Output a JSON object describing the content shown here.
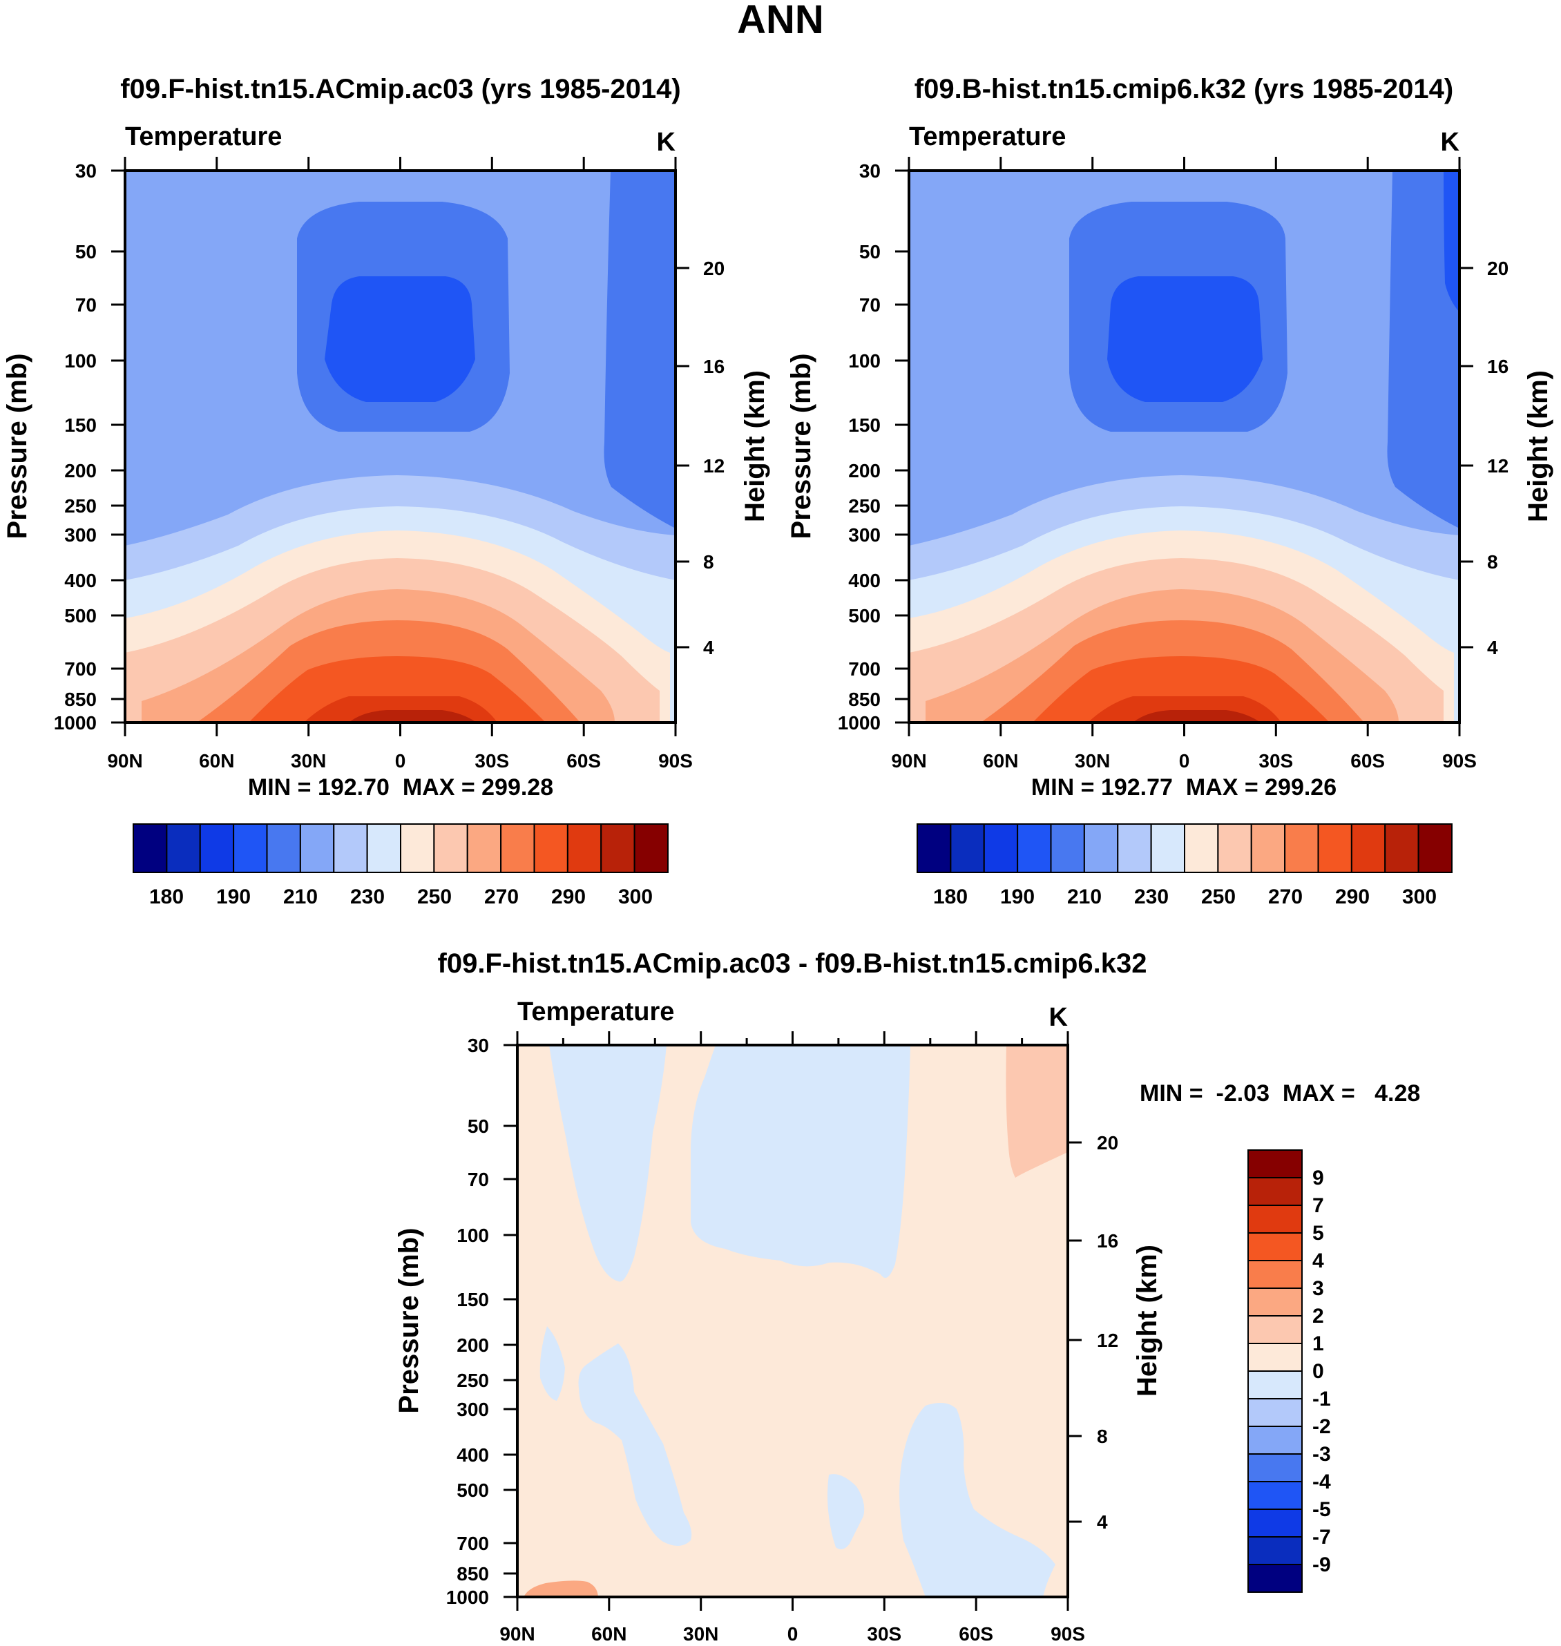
{
  "figure": {
    "title": "ANN"
  },
  "chart_data": [
    {
      "type": "heatmap",
      "id": "p1",
      "title": "f09.F-hist.tn15.ACmip.ac03 (yrs 1985-2014)",
      "variable": "Temperature",
      "units": "K",
      "ylabel": "Pressure (mb)",
      "ylabel2": "Height (km)",
      "x_ticks": [
        "90N",
        "60N",
        "30N",
        "0",
        "30S",
        "60S",
        "90S"
      ],
      "x_values": [
        90,
        60,
        30,
        0,
        -30,
        -60,
        -90
      ],
      "y_ticks": [
        "30",
        "50",
        "70",
        "100",
        "150",
        "200",
        "250",
        "300",
        "400",
        "500",
        "700",
        "850",
        "1000"
      ],
      "y_values": [
        30,
        50,
        70,
        100,
        150,
        200,
        250,
        300,
        400,
        500,
        700,
        850,
        1000
      ],
      "y2_ticks": [
        "20",
        "16",
        "12",
        "8",
        "4"
      ],
      "y2_values": [
        20,
        16,
        12,
        8,
        4
      ],
      "ylim": [
        1000,
        30
      ],
      "stats": "MIN = 192.70  MAX = 299.28",
      "min": 192.7,
      "max": 299.28,
      "levels": [
        180,
        185,
        190,
        200,
        210,
        220,
        230,
        240,
        250,
        260,
        270,
        280,
        290,
        295,
        300
      ],
      "colorbar_labels": [
        "180",
        "190",
        "210",
        "230",
        "250",
        "270",
        "290",
        "300"
      ],
      "colorbar_label_index": [
        0,
        2,
        4,
        6,
        8,
        10,
        12,
        14
      ],
      "colors": [
        "#000080",
        "#0a2dbe",
        "#0f3ae6",
        "#1f55f5",
        "#4878f0",
        "#84a7f7",
        "#b3c9fa",
        "#d7e8fc",
        "#fde9d9",
        "#fcc8b0",
        "#fba882",
        "#f97d4b",
        "#f45722",
        "#e03a10",
        "#b82209",
        "#860000"
      ]
    },
    {
      "type": "heatmap",
      "id": "p2",
      "title": "f09.B-hist.tn15.cmip6.k32 (yrs 1985-2014)",
      "variable": "Temperature",
      "units": "K",
      "ylabel": "Pressure (mb)",
      "ylabel2": "Height (km)",
      "x_ticks": [
        "90N",
        "60N",
        "30N",
        "0",
        "30S",
        "60S",
        "90S"
      ],
      "x_values": [
        90,
        60,
        30,
        0,
        -30,
        -60,
        -90
      ],
      "y_ticks": [
        "30",
        "50",
        "70",
        "100",
        "150",
        "200",
        "250",
        "300",
        "400",
        "500",
        "700",
        "850",
        "1000"
      ],
      "y_values": [
        30,
        50,
        70,
        100,
        150,
        200,
        250,
        300,
        400,
        500,
        700,
        850,
        1000
      ],
      "y2_ticks": [
        "20",
        "16",
        "12",
        "8",
        "4"
      ],
      "y2_values": [
        20,
        16,
        12,
        8,
        4
      ],
      "ylim": [
        1000,
        30
      ],
      "stats": "MIN = 192.77  MAX = 299.26",
      "min": 192.77,
      "max": 299.26,
      "levels": [
        180,
        185,
        190,
        200,
        210,
        220,
        230,
        240,
        250,
        260,
        270,
        280,
        290,
        295,
        300
      ],
      "colorbar_labels": [
        "180",
        "190",
        "210",
        "230",
        "250",
        "270",
        "290",
        "300"
      ],
      "colorbar_label_index": [
        0,
        2,
        4,
        6,
        8,
        10,
        12,
        14
      ],
      "colors": [
        "#000080",
        "#0a2dbe",
        "#0f3ae6",
        "#1f55f5",
        "#4878f0",
        "#84a7f7",
        "#b3c9fa",
        "#d7e8fc",
        "#fde9d9",
        "#fcc8b0",
        "#fba882",
        "#f97d4b",
        "#f45722",
        "#e03a10",
        "#b82209",
        "#860000"
      ]
    },
    {
      "type": "heatmap",
      "id": "p3",
      "title": "f09.F-hist.tn15.ACmip.ac03 - f09.B-hist.tn15.cmip6.k32",
      "variable": "Temperature",
      "units": "K",
      "ylabel": "Pressure (mb)",
      "ylabel2": "Height (km)",
      "x_ticks": [
        "90N",
        "60N",
        "30N",
        "0",
        "30S",
        "60S",
        "90S"
      ],
      "x_values": [
        90,
        60,
        30,
        0,
        -30,
        -60,
        -90
      ],
      "y_ticks": [
        "30",
        "50",
        "70",
        "100",
        "150",
        "200",
        "250",
        "300",
        "400",
        "500",
        "700",
        "850",
        "1000"
      ],
      "y_values": [
        30,
        50,
        70,
        100,
        150,
        200,
        250,
        300,
        400,
        500,
        700,
        850,
        1000
      ],
      "y2_ticks": [
        "20",
        "16",
        "12",
        "8",
        "4"
      ],
      "y2_values": [
        20,
        16,
        12,
        8,
        4
      ],
      "ylim": [
        1000,
        30
      ],
      "stats": "MIN =  -2.03  MAX =   4.28",
      "min": -2.03,
      "max": 4.28,
      "levels": [
        9,
        7,
        5,
        4,
        3,
        2,
        1,
        0,
        -1,
        -2,
        -3,
        -4,
        -5,
        -7,
        -9
      ],
      "colorbar_labels": [
        "9",
        "7",
        "5",
        "4",
        "3",
        "2",
        "1",
        "0",
        "-1",
        "-2",
        "-3",
        "-4",
        "-5",
        "-7",
        "-9"
      ],
      "colors": [
        "#860000",
        "#b82209",
        "#e03a10",
        "#f45722",
        "#f97d4b",
        "#fba882",
        "#fcc8b0",
        "#fde9d9",
        "#d7e8fc",
        "#b3c9fa",
        "#84a7f7",
        "#4878f0",
        "#1f55f5",
        "#0f3ae6",
        "#0a2dbe",
        "#000080"
      ]
    }
  ]
}
